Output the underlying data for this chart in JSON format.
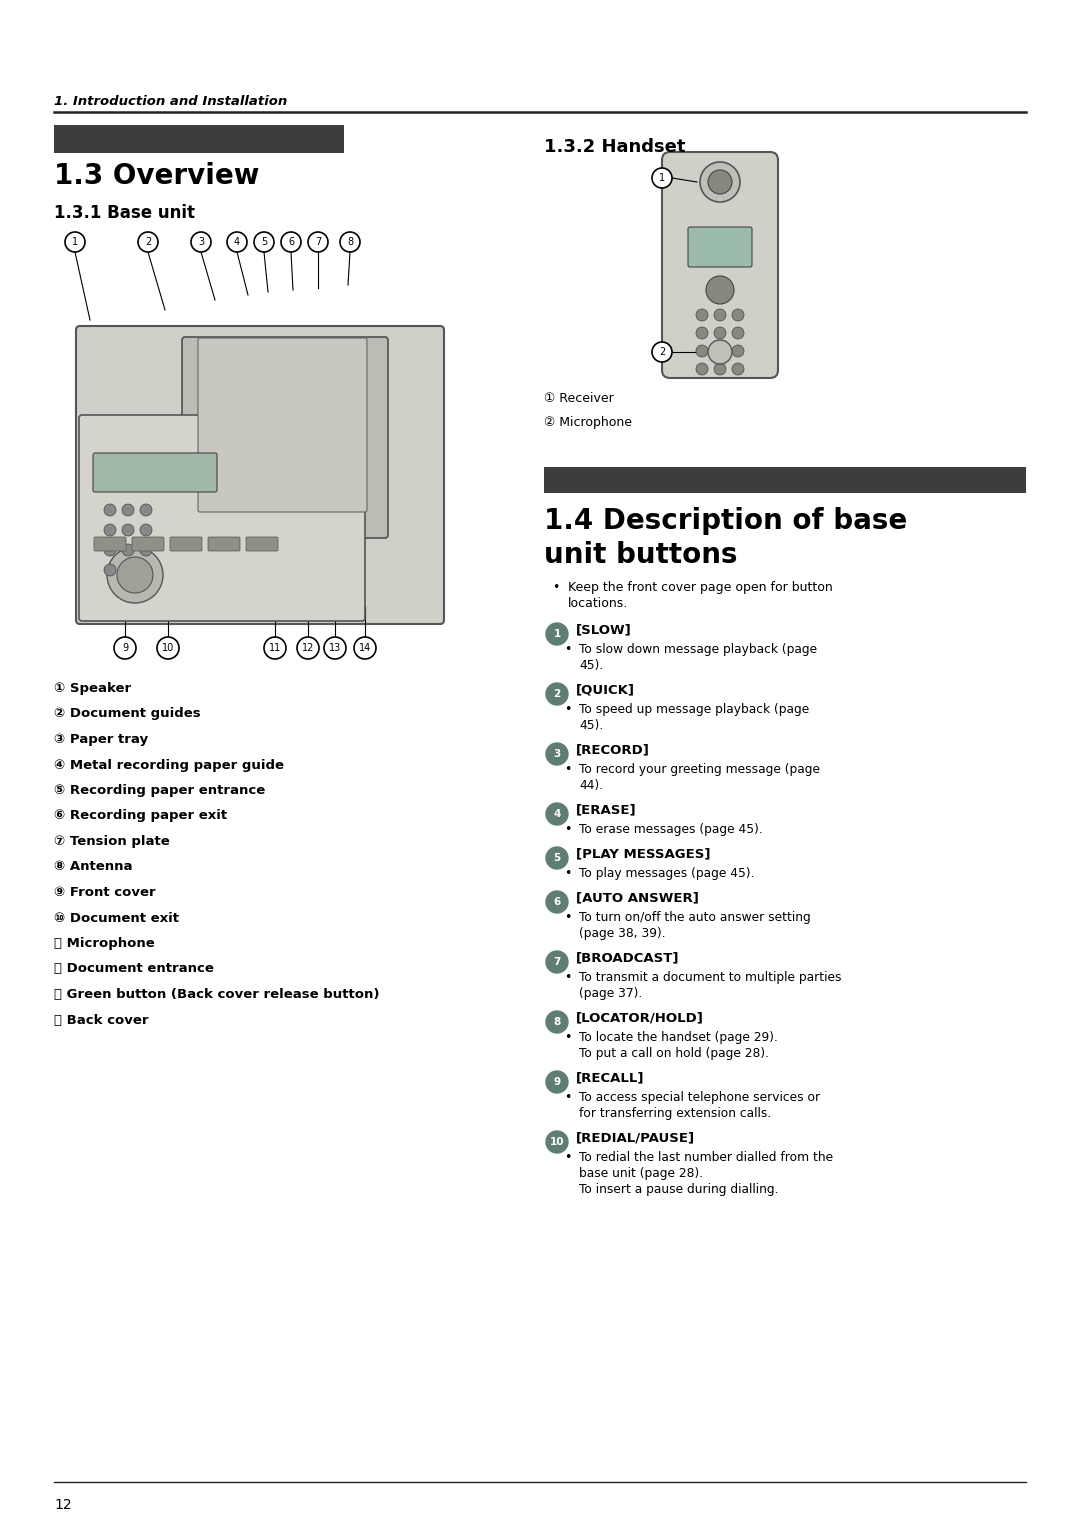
{
  "page_bg": "#ffffff",
  "page_num": "12",
  "header_text": "1. Introduction and Installation",
  "dark_bar_color": "#3d3d3d",
  "title_overview": "1.3 Overview",
  "title_base_unit": "1.3.1 Base unit",
  "title_handset": "1.3.2 Handset",
  "handset_labels": [
    "① Receiver",
    "② Microphone"
  ],
  "base_unit_items": [
    "① Speaker",
    "② Document guides",
    "③ Paper tray",
    "④ Metal recording paper guide",
    "⑤ Recording paper entrance",
    "⑥ Recording paper exit",
    "⑦ Tension plate",
    "⑧ Antenna",
    "⑨ Front cover",
    "⑩ Document exit",
    "⑪ Microphone",
    "⑫ Document entrance",
    "⑬ Green button (Back cover release button)",
    "⑭ Back cover"
  ],
  "section14_title_line1": "1.4 Description of base",
  "section14_title_line2": "unit buttons",
  "section14_intro": "Keep the front cover page open for button\nlocations.",
  "buttons": [
    {
      "num": "1",
      "label": "[SLOW]",
      "desc": [
        "To slow down message playback (page",
        "45)."
      ]
    },
    {
      "num": "2",
      "label": "[QUICK]",
      "desc": [
        "To speed up message playback (page",
        "45)."
      ]
    },
    {
      "num": "3",
      "label": "[RECORD]",
      "desc": [
        "To record your greeting message (page",
        "44)."
      ]
    },
    {
      "num": "4",
      "label": "[ERASE]",
      "desc": [
        "To erase messages (page 45)."
      ]
    },
    {
      "num": "5",
      "label": "[PLAY MESSAGES]",
      "desc": [
        "To play messages (page 45)."
      ]
    },
    {
      "num": "6",
      "label": "[AUTO ANSWER]",
      "desc": [
        "To turn on/off the auto answer setting",
        "(page 38, 39)."
      ]
    },
    {
      "num": "7",
      "label": "[BROADCAST]",
      "desc": [
        "To transmit a document to multiple parties",
        "(page 37)."
      ]
    },
    {
      "num": "8",
      "label": "[LOCATOR/HOLD]",
      "desc": [
        "To locate the handset (page 29).",
        "To put a call on hold (page 28)."
      ]
    },
    {
      "num": "9",
      "label": "[RECALL]",
      "desc": [
        "To access special telephone services or",
        "for transferring extension calls."
      ]
    },
    {
      "num": "10",
      "label": "[REDIAL/PAUSE]",
      "desc": [
        "To redial the last number dialled from the",
        "base unit (page 28).",
        "To insert a pause during dialling."
      ]
    }
  ],
  "circle_color": "#607d74",
  "text_color": "#000000"
}
